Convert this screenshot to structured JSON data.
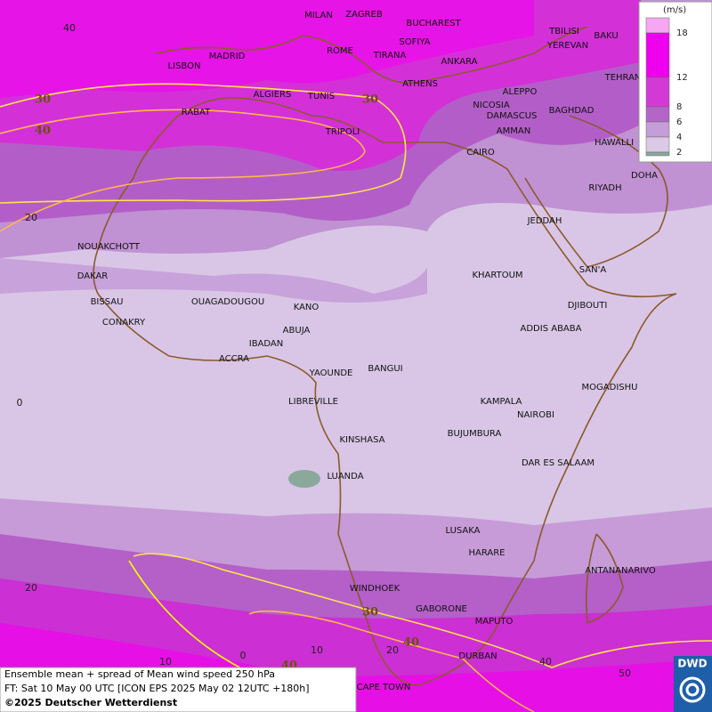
{
  "legend": {
    "unit": "(m/s)",
    "ticks": [
      18,
      12,
      8,
      6,
      4,
      2
    ]
  },
  "cities": [
    "MILAN",
    "ZAGREB",
    "BUCHAREST",
    "TBILISI",
    "BAKU",
    "SOFIYA",
    "ROME",
    "TIRANA",
    "ANKARA",
    "YEREVAN",
    "MADRID",
    "LISBON",
    "TEHRAN",
    "ATHENS",
    "ALGIERS",
    "TUNIS",
    "ALEPPO",
    "NICOSIA",
    "BAGHDAD",
    "RABAT",
    "DAMASCUS",
    "AMMAN",
    "TRIPOLI",
    "HAWALLI",
    "CAIRO",
    "DOHA",
    "RIYADH",
    "JEDDAH",
    "NOUAKCHOTT",
    "SAN'A",
    "DAKAR",
    "KHARTOUM",
    "BISSAU",
    "OUAGADOUGOU",
    "DJIBOUTI",
    "KANO",
    "CONAKRY",
    "ABUJA",
    "ADDIS ABABA",
    "IBADAN",
    "ACCRA",
    "BANGUI",
    "YAOUNDE",
    "MOGADISHU",
    "KAMPALA",
    "LIBREVILLE",
    "NAIROBI",
    "BUJUMBURA",
    "KINSHASA",
    "DAR ES SALAAM",
    "LUANDA",
    "LUSAKA",
    "HARARE",
    "ANTANANARIVO",
    "WINDHOEK",
    "GABORONE",
    "MAPUTO",
    "DURBAN",
    "CAPE TOWN"
  ],
  "latitude_labels": [
    40,
    20,
    0,
    20
  ],
  "longitude_labels": [
    10,
    0,
    10,
    20,
    40,
    50
  ],
  "contour_labels": [
    30,
    40,
    30,
    30,
    40,
    40
  ],
  "info": {
    "line1": "Ensemble mean + spread of Mean wind speed 250 hPa",
    "line2": "FT: Sat 10 May 00 UTC [ICON EPS 2025 May 02 12UTC +180h]",
    "copyright": "©2025 Deutscher Wetterdienst"
  },
  "logo": "DWD"
}
